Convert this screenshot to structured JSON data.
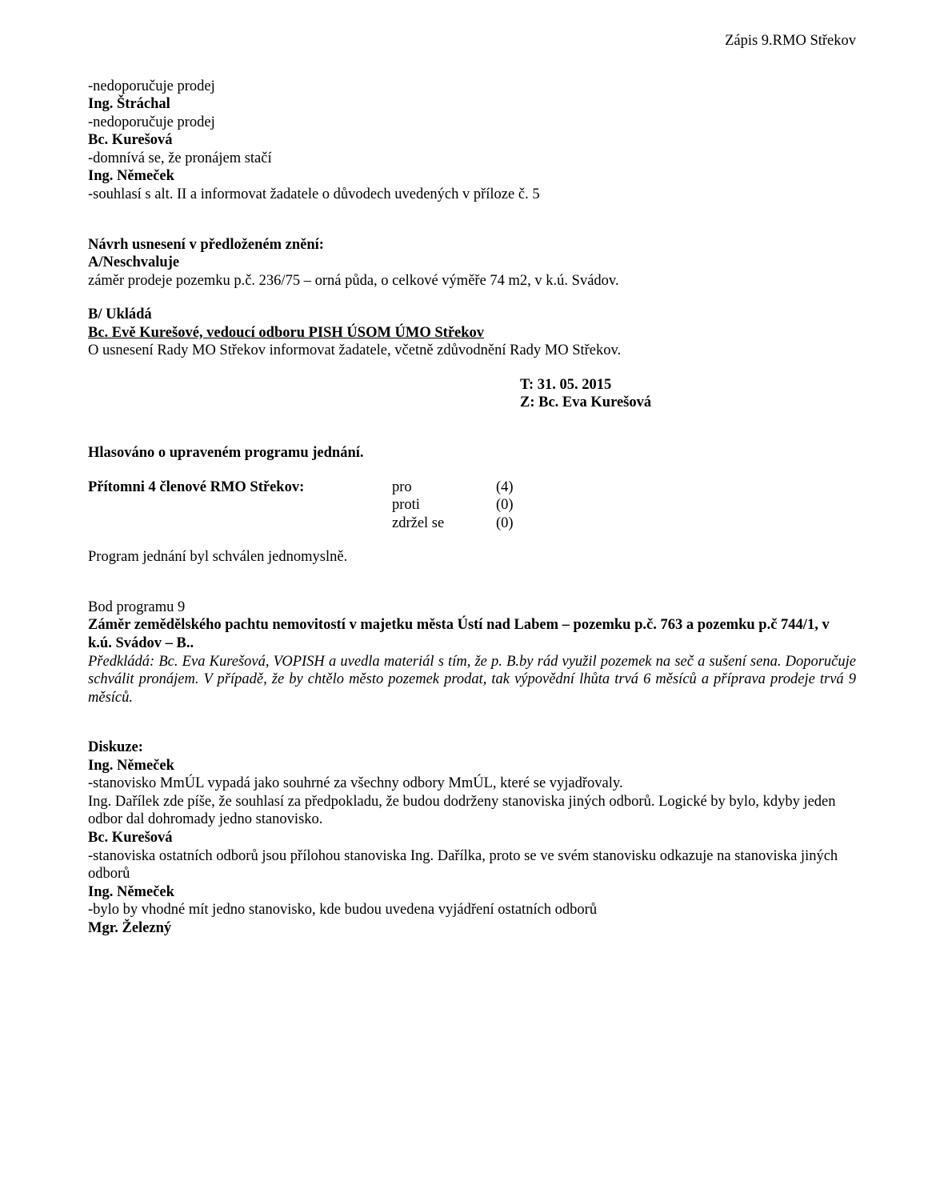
{
  "header": {
    "right": "Zápis 9.RMO Střekov"
  },
  "intro": {
    "l1": "-nedoporučuje prodej",
    "p1": "Ing. Štráchal",
    "l2": "-nedoporučuje prodej",
    "p2": "Bc. Kurešová",
    "l3": "-domnívá se, že pronájem stačí",
    "p3": "Ing. Němeček",
    "l4": "-souhlasí s alt. II a informovat žadatele o důvodech uvedených v příloze č. 5"
  },
  "proposal": {
    "title": "Návrh usnesení v předloženém znění:",
    "part_a_label": "A/Neschvaluje",
    "part_a_text": "záměr prodeje pozemku p.č. 236/75 – orná půda, o celkové výměře 74 m2, v k.ú. Svádov.",
    "part_b_label": "B/ Ukládá",
    "part_b_to": "Bc. Evě Kurešové, vedoucí odboru PISH  ÚSOM ÚMO Střekov",
    "part_b_text": "O usnesení Rady MO Střekov informovat žadatele, včetně zdůvodnění Rady MO Střekov."
  },
  "tz": {
    "t": "T: 31. 05. 2015",
    "z": "Z: Bc. Eva Kurešová"
  },
  "vote": {
    "heading": "Hlasováno o upraveném programu jednání.",
    "present": "Přítomni 4 členové RMO Střekov:",
    "rows": [
      {
        "label": "pro",
        "count": "(4)"
      },
      {
        "label": "proti",
        "count": "(0)"
      },
      {
        "label": "zdržel se",
        "count": "(0)"
      }
    ],
    "result": "Program jednání byl schválen jednomyslně."
  },
  "item9": {
    "num": "Bod programu 9",
    "title": "Záměr zemědělského pachtu nemovitostí v majetku města Ústí nad Labem – pozemku p.č. 763 a pozemku p.č 744/1, v k.ú. Svádov – B..",
    "submitter": "Předkládá: Bc. Eva Kurešová, VOPISH a uvedla materiál s tím, že p. B.by rád využil pozemek na seč a sušení sena. Doporučuje schválit pronájem. V případě, že by chtělo město pozemek prodat, tak výpovědní lhůta trvá 6 měsíců a příprava prodeje trvá 9 měsíců."
  },
  "discussion": {
    "heading": "Diskuze:",
    "e": [
      {
        "who": "Ing. Němeček",
        "lines": [
          "-stanovisko MmÚL vypadá jako souhrné za všechny odbory MmÚL, které se vyjadřovaly.",
          "Ing. Dařílek zde píše, že souhlasí za předpokladu, že budou dodrženy stanoviska jiných odborů. Logické by bylo, kdyby jeden odbor dal dohromady jedno stanovisko."
        ]
      },
      {
        "who": "Bc. Kurešová",
        "lines": [
          "-stanoviska ostatních odborů jsou přílohou stanoviska Ing. Dařílka, proto se ve svém stanovisku odkazuje na stanoviska jiných odborů"
        ]
      },
      {
        "who": "Ing. Němeček",
        "lines": [
          "-bylo by vhodné mít jedno stanovisko, kde budou uvedena vyjádření ostatních odborů"
        ]
      },
      {
        "who": "Mgr. Železný",
        "lines": []
      }
    ]
  }
}
